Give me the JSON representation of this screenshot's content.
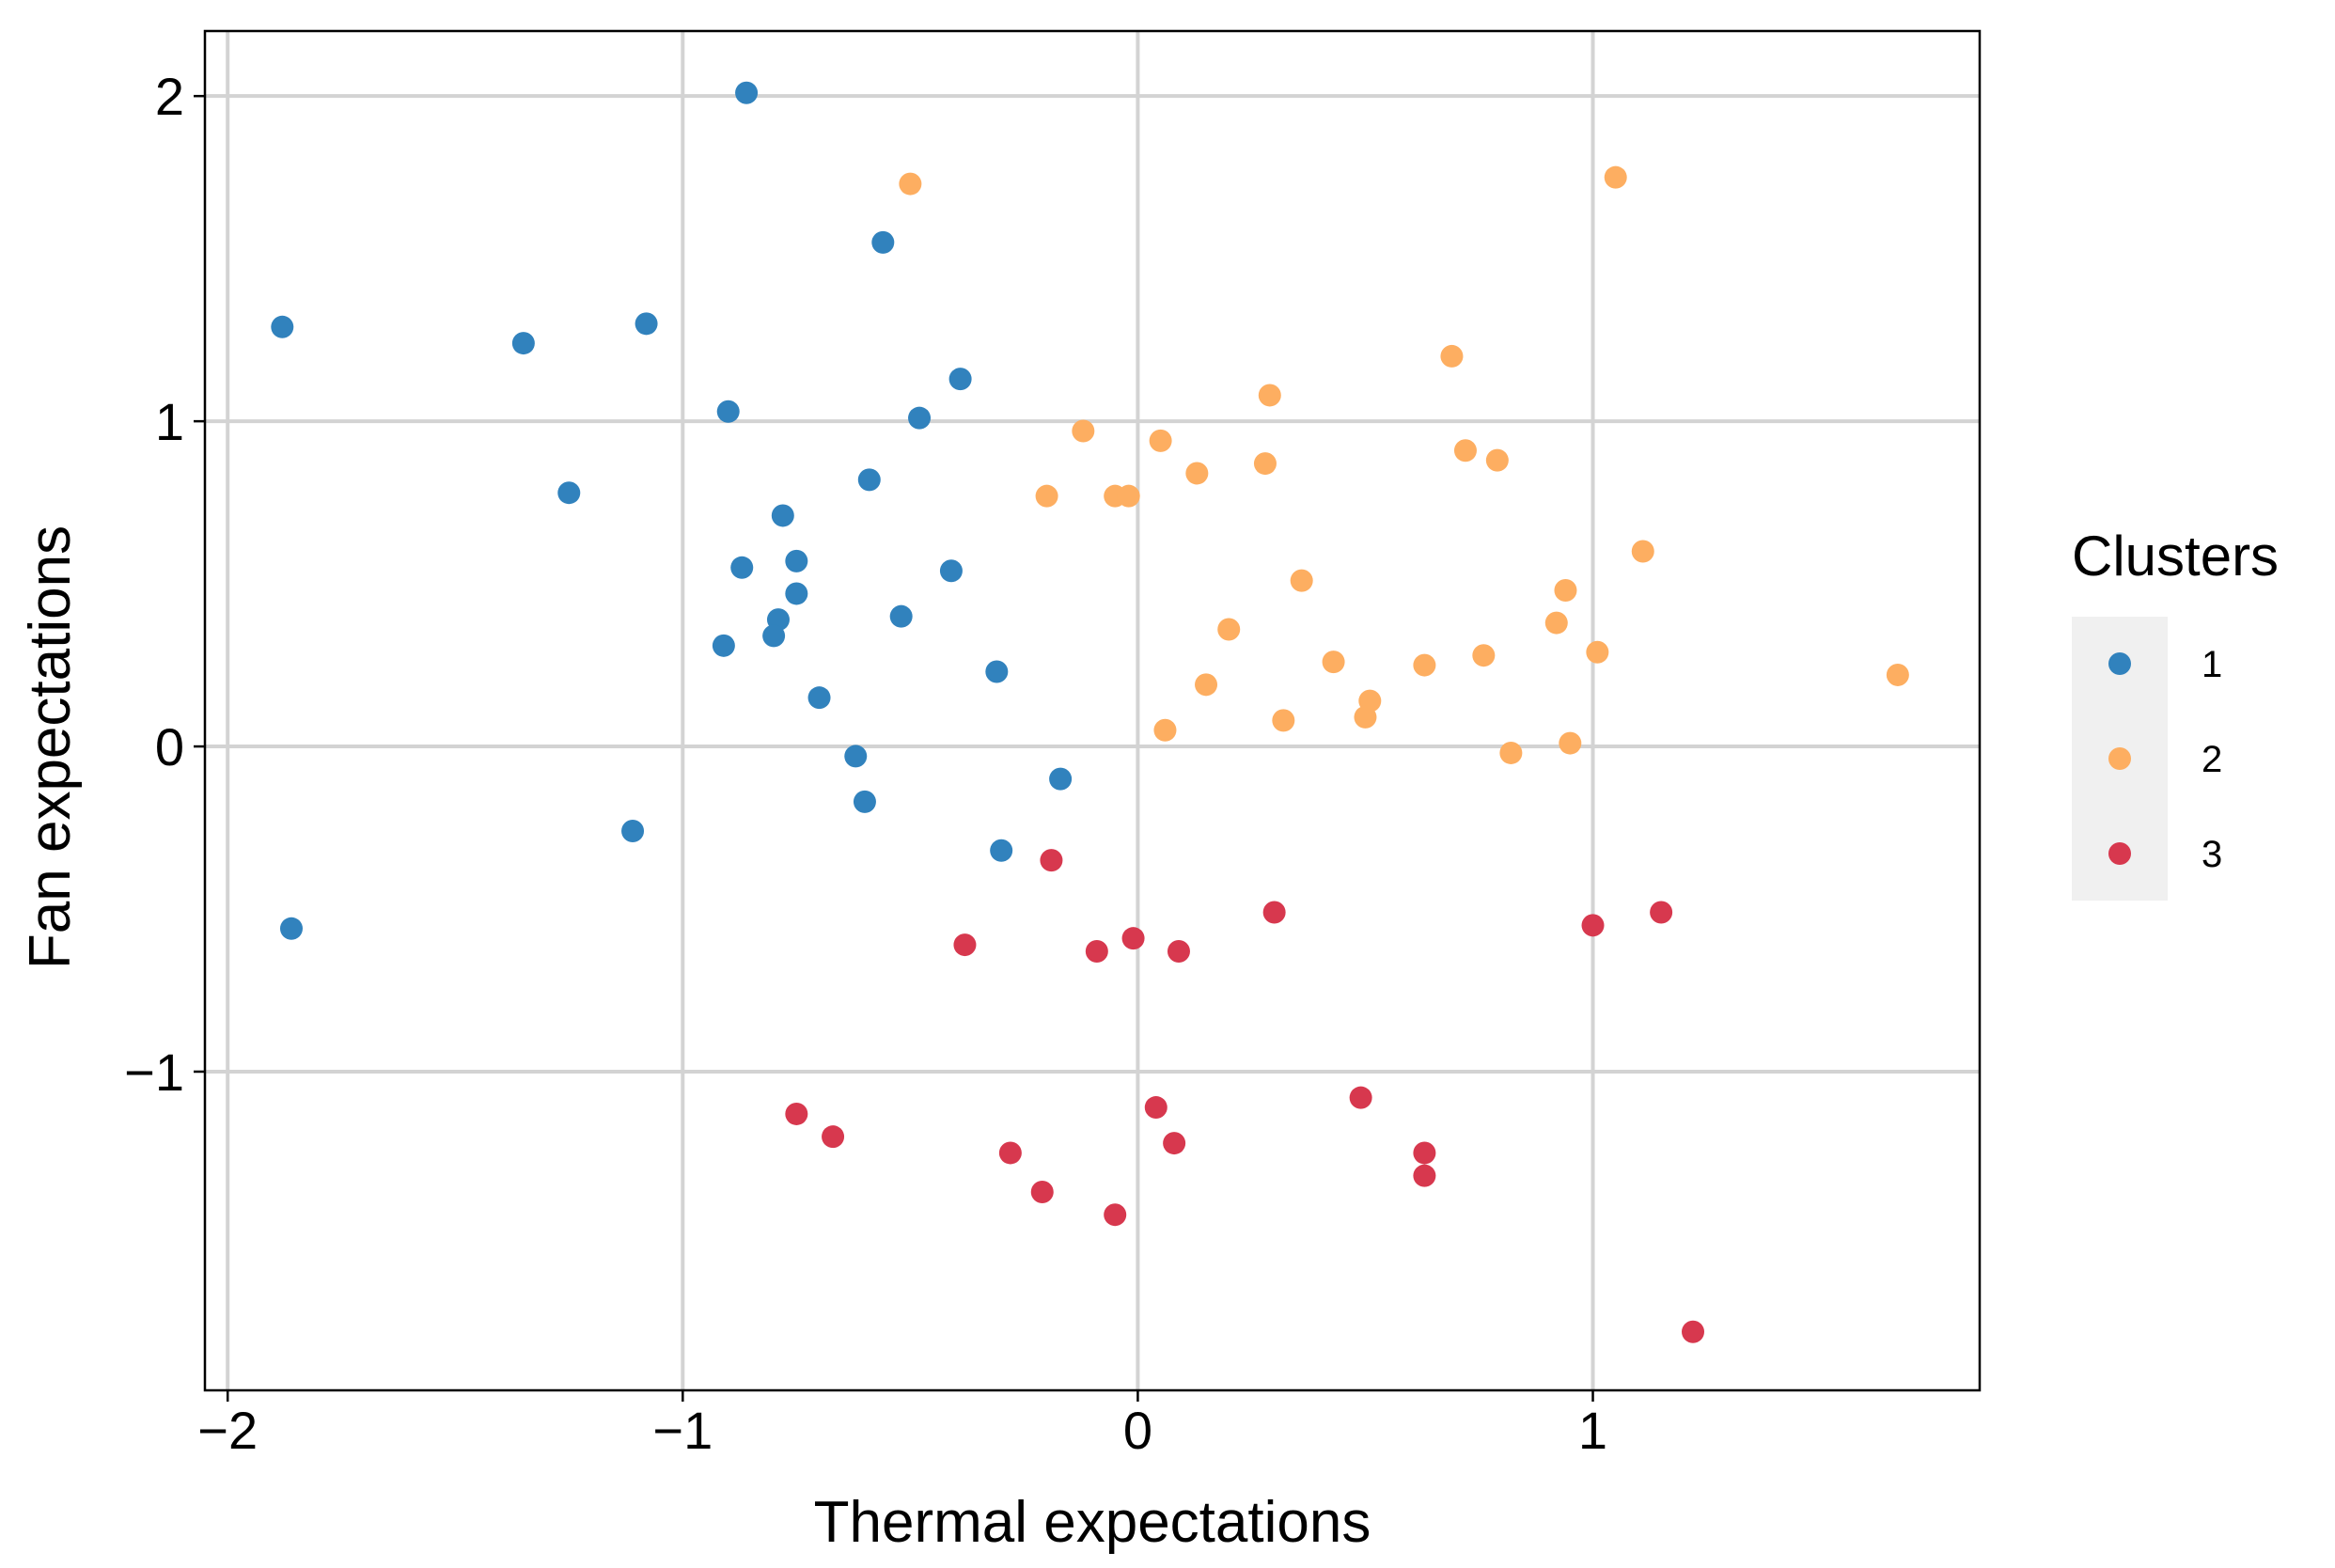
{
  "chart_data": {
    "type": "scatter",
    "title": "",
    "xlabel": "Thermal expectations",
    "ylabel": "Fan expectations",
    "xlim": [
      -2.05,
      1.85
    ],
    "ylim": [
      -1.98,
      2.2
    ],
    "xticks": [
      -2,
      -1,
      0,
      1
    ],
    "yticks": [
      -1,
      0,
      1,
      2
    ],
    "xtick_labels": [
      "−2",
      "−1",
      "0",
      "1"
    ],
    "ytick_labels": [
      "−1",
      "0",
      "1",
      "2"
    ],
    "grid": true,
    "legend": {
      "title": "Clusters",
      "position": "right"
    },
    "series": [
      {
        "name": "1",
        "color": "#3182bd",
        "points": [
          [
            -0.86,
            2.01
          ],
          [
            -0.56,
            1.55
          ],
          [
            -1.88,
            1.29
          ],
          [
            -1.08,
            1.3
          ],
          [
            -1.35,
            1.24
          ],
          [
            -0.39,
            1.13
          ],
          [
            -0.9,
            1.03
          ],
          [
            -0.48,
            1.01
          ],
          [
            -1.25,
            0.78
          ],
          [
            -0.59,
            0.82
          ],
          [
            -0.78,
            0.71
          ],
          [
            -0.75,
            0.57
          ],
          [
            -0.87,
            0.55
          ],
          [
            -0.41,
            0.54
          ],
          [
            -0.75,
            0.47
          ],
          [
            -0.52,
            0.4
          ],
          [
            -0.79,
            0.39
          ],
          [
            -0.8,
            0.34
          ],
          [
            -0.91,
            0.31
          ],
          [
            -0.31,
            0.23
          ],
          [
            -0.7,
            0.15
          ],
          [
            -0.62,
            -0.03
          ],
          [
            -0.6,
            -0.17
          ],
          [
            -0.17,
            -0.1
          ],
          [
            -1.11,
            -0.26
          ],
          [
            -0.3,
            -0.32
          ],
          [
            -1.86,
            -0.56
          ]
        ]
      },
      {
        "name": "2",
        "color": "#fdae61",
        "points": [
          [
            -0.5,
            1.73
          ],
          [
            1.05,
            1.75
          ],
          [
            0.69,
            1.2
          ],
          [
            0.29,
            1.08
          ],
          [
            -0.12,
            0.97
          ],
          [
            0.05,
            0.94
          ],
          [
            0.72,
            0.91
          ],
          [
            0.79,
            0.88
          ],
          [
            0.28,
            0.87
          ],
          [
            0.13,
            0.84
          ],
          [
            -0.2,
            0.77
          ],
          [
            -0.05,
            0.77
          ],
          [
            -0.02,
            0.77
          ],
          [
            1.11,
            0.6
          ],
          [
            0.36,
            0.51
          ],
          [
            0.94,
            0.48
          ],
          [
            0.92,
            0.38
          ],
          [
            0.2,
            0.36
          ],
          [
            1.01,
            0.29
          ],
          [
            0.76,
            0.28
          ],
          [
            0.43,
            0.26
          ],
          [
            0.63,
            0.25
          ],
          [
            1.67,
            0.22
          ],
          [
            0.15,
            0.19
          ],
          [
            0.51,
            0.14
          ],
          [
            0.5,
            0.09
          ],
          [
            0.32,
            0.08
          ],
          [
            0.06,
            0.05
          ],
          [
            0.95,
            0.01
          ],
          [
            0.82,
            -0.02
          ]
        ]
      },
      {
        "name": "3",
        "color": "#d7384e",
        "points": [
          [
            -0.19,
            -0.35
          ],
          [
            0.3,
            -0.51
          ],
          [
            1.15,
            -0.51
          ],
          [
            1.0,
            -0.55
          ],
          [
            -0.38,
            -0.61
          ],
          [
            -0.09,
            -0.63
          ],
          [
            0.09,
            -0.63
          ],
          [
            -0.01,
            -0.59
          ],
          [
            0.49,
            -1.08
          ],
          [
            -0.75,
            -1.13
          ],
          [
            0.04,
            -1.11
          ],
          [
            -0.67,
            -1.2
          ],
          [
            0.08,
            -1.22
          ],
          [
            -0.28,
            -1.25
          ],
          [
            0.63,
            -1.25
          ],
          [
            0.63,
            -1.32
          ],
          [
            -0.21,
            -1.37
          ],
          [
            -0.05,
            -1.44
          ],
          [
            1.22,
            -1.8
          ]
        ]
      }
    ]
  }
}
